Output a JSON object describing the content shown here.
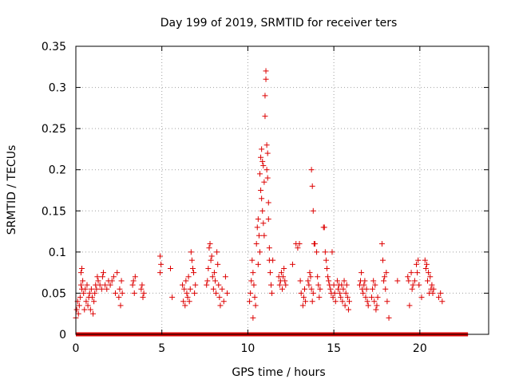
{
  "chart_data": {
    "type": "scatter",
    "title": "Day 199 of 2019, SRMTID for receiver ters",
    "xlabel": "GPS time / hours",
    "ylabel": "SRMTID / TECUs",
    "xlim": [
      0,
      24
    ],
    "ylim": [
      0,
      0.35
    ],
    "xticks": [
      0,
      5,
      10,
      15,
      20
    ],
    "xtick_labels": [
      "0",
      "5",
      "10",
      "15",
      "20"
    ],
    "yticks": [
      0,
      0.05,
      0.1,
      0.15,
      0.2,
      0.25,
      0.3,
      0.35
    ],
    "ytick_labels": [
      "0",
      "0.05",
      "0.1",
      "0.15",
      "0.2",
      "0.25",
      "0.3",
      "0.35"
    ],
    "grid": true,
    "marker": "plus",
    "color": "#dd0000",
    "zero_line": {
      "x_start": 0.0,
      "x_end": 22.8,
      "y": 0.0
    },
    "series": [
      {
        "name": "SRMTID",
        "points": [
          [
            0.0,
            0.02
          ],
          [
            0.05,
            0.03
          ],
          [
            0.1,
            0.04
          ],
          [
            0.15,
            0.025
          ],
          [
            0.2,
            0.035
          ],
          [
            0.25,
            0.045
          ],
          [
            0.3,
            0.06
          ],
          [
            0.3,
            0.075
          ],
          [
            0.35,
            0.08
          ],
          [
            0.35,
            0.055
          ],
          [
            0.4,
            0.065
          ],
          [
            0.45,
            0.05
          ],
          [
            0.5,
            0.03
          ],
          [
            0.55,
            0.055
          ],
          [
            0.6,
            0.04
          ],
          [
            0.65,
            0.06
          ],
          [
            0.7,
            0.035
          ],
          [
            0.75,
            0.045
          ],
          [
            0.8,
            0.05
          ],
          [
            0.85,
            0.03
          ],
          [
            0.9,
            0.055
          ],
          [
            0.95,
            0.045
          ],
          [
            1.0,
            0.025
          ],
          [
            1.05,
            0.04
          ],
          [
            1.1,
            0.05
          ],
          [
            1.15,
            0.06
          ],
          [
            1.2,
            0.055
          ],
          [
            1.25,
            0.07
          ],
          [
            1.3,
            0.065
          ],
          [
            1.4,
            0.06
          ],
          [
            1.5,
            0.055
          ],
          [
            1.55,
            0.07
          ],
          [
            1.6,
            0.075
          ],
          [
            1.7,
            0.06
          ],
          [
            1.8,
            0.055
          ],
          [
            1.9,
            0.065
          ],
          [
            2.0,
            0.06
          ],
          [
            2.1,
            0.065
          ],
          [
            2.2,
            0.07
          ],
          [
            2.3,
            0.05
          ],
          [
            2.4,
            0.075
          ],
          [
            2.5,
            0.045
          ],
          [
            2.55,
            0.055
          ],
          [
            2.6,
            0.035
          ],
          [
            2.65,
            0.065
          ],
          [
            2.7,
            0.05
          ],
          [
            3.3,
            0.06
          ],
          [
            3.35,
            0.065
          ],
          [
            3.4,
            0.05
          ],
          [
            3.45,
            0.07
          ],
          [
            3.8,
            0.055
          ],
          [
            3.85,
            0.06
          ],
          [
            3.9,
            0.045
          ],
          [
            3.95,
            0.05
          ],
          [
            4.9,
            0.095
          ],
          [
            4.9,
            0.075
          ],
          [
            4.95,
            0.085
          ],
          [
            5.5,
            0.08
          ],
          [
            5.6,
            0.045
          ],
          [
            6.2,
            0.06
          ],
          [
            6.25,
            0.04
          ],
          [
            6.3,
            0.055
          ],
          [
            6.35,
            0.035
          ],
          [
            6.4,
            0.065
          ],
          [
            6.45,
            0.05
          ],
          [
            6.5,
            0.045
          ],
          [
            6.55,
            0.07
          ],
          [
            6.6,
            0.04
          ],
          [
            6.65,
            0.055
          ],
          [
            6.7,
            0.1
          ],
          [
            6.75,
            0.09
          ],
          [
            6.8,
            0.08
          ],
          [
            6.85,
            0.075
          ],
          [
            6.9,
            0.05
          ],
          [
            6.95,
            0.06
          ],
          [
            7.6,
            0.06
          ],
          [
            7.65,
            0.065
          ],
          [
            7.7,
            0.08
          ],
          [
            7.75,
            0.105
          ],
          [
            7.8,
            0.11
          ],
          [
            7.85,
            0.09
          ],
          [
            7.9,
            0.095
          ],
          [
            7.95,
            0.07
          ],
          [
            8.0,
            0.055
          ],
          [
            8.05,
            0.075
          ],
          [
            8.1,
            0.065
          ],
          [
            8.15,
            0.05
          ],
          [
            8.2,
            0.1
          ],
          [
            8.25,
            0.085
          ],
          [
            8.3,
            0.06
          ],
          [
            8.35,
            0.045
          ],
          [
            8.4,
            0.035
          ],
          [
            8.5,
            0.055
          ],
          [
            8.6,
            0.04
          ],
          [
            8.7,
            0.07
          ],
          [
            8.8,
            0.05
          ],
          [
            10.1,
            0.04
          ],
          [
            10.15,
            0.05
          ],
          [
            10.2,
            0.065
          ],
          [
            10.25,
            0.09
          ],
          [
            10.3,
            0.075
          ],
          [
            10.35,
            0.06
          ],
          [
            10.4,
            0.045
          ],
          [
            10.45,
            0.035
          ],
          [
            10.5,
            0.11
          ],
          [
            10.55,
            0.13
          ],
          [
            10.6,
            0.14
          ],
          [
            10.65,
            0.12
          ],
          [
            10.7,
            0.1
          ],
          [
            10.7,
            0.195
          ],
          [
            10.75,
            0.175
          ],
          [
            10.75,
            0.215
          ],
          [
            10.8,
            0.225
          ],
          [
            10.8,
            0.165
          ],
          [
            10.85,
            0.21
          ],
          [
            10.85,
            0.15
          ],
          [
            10.9,
            0.205
          ],
          [
            10.9,
            0.135
          ],
          [
            10.95,
            0.185
          ],
          [
            10.95,
            0.12
          ],
          [
            11.0,
            0.265
          ],
          [
            11.0,
            0.29
          ],
          [
            11.05,
            0.32
          ],
          [
            11.05,
            0.31
          ],
          [
            11.1,
            0.2
          ],
          [
            11.1,
            0.23
          ],
          [
            11.15,
            0.22
          ],
          [
            11.15,
            0.19
          ],
          [
            11.2,
            0.16
          ],
          [
            11.2,
            0.14
          ],
          [
            11.25,
            0.105
          ],
          [
            11.25,
            0.09
          ],
          [
            11.3,
            0.075
          ],
          [
            11.35,
            0.06
          ],
          [
            11.4,
            0.05
          ],
          [
            11.45,
            0.09
          ],
          [
            10.3,
            0.02
          ],
          [
            10.6,
            0.085
          ],
          [
            11.8,
            0.07
          ],
          [
            11.85,
            0.06
          ],
          [
            11.9,
            0.065
          ],
          [
            11.95,
            0.075
          ],
          [
            12.0,
            0.055
          ],
          [
            12.05,
            0.07
          ],
          [
            12.1,
            0.08
          ],
          [
            12.15,
            0.065
          ],
          [
            12.2,
            0.06
          ],
          [
            12.6,
            0.085
          ],
          [
            12.8,
            0.11
          ],
          [
            12.9,
            0.105
          ],
          [
            13.0,
            0.11
          ],
          [
            13.05,
            0.065
          ],
          [
            13.1,
            0.05
          ],
          [
            13.2,
            0.035
          ],
          [
            13.25,
            0.045
          ],
          [
            13.3,
            0.055
          ],
          [
            13.35,
            0.04
          ],
          [
            13.5,
            0.065
          ],
          [
            13.55,
            0.06
          ],
          [
            13.6,
            0.075
          ],
          [
            13.65,
            0.07
          ],
          [
            13.7,
            0.055
          ],
          [
            13.75,
            0.04
          ],
          [
            13.8,
            0.05
          ],
          [
            13.7,
            0.2
          ],
          [
            13.75,
            0.18
          ],
          [
            13.8,
            0.15
          ],
          [
            13.85,
            0.11
          ],
          [
            13.9,
            0.11
          ],
          [
            14.0,
            0.1
          ],
          [
            14.05,
            0.07
          ],
          [
            14.1,
            0.06
          ],
          [
            14.15,
            0.045
          ],
          [
            14.2,
            0.055
          ],
          [
            14.4,
            0.13
          ],
          [
            14.45,
            0.13
          ],
          [
            14.5,
            0.1
          ],
          [
            14.55,
            0.09
          ],
          [
            14.6,
            0.08
          ],
          [
            14.65,
            0.07
          ],
          [
            14.7,
            0.065
          ],
          [
            14.75,
            0.06
          ],
          [
            14.8,
            0.055
          ],
          [
            14.85,
            0.05
          ],
          [
            14.9,
            0.1
          ],
          [
            14.95,
            0.045
          ],
          [
            15.0,
            0.06
          ],
          [
            15.05,
            0.05
          ],
          [
            15.1,
            0.04
          ],
          [
            15.2,
            0.065
          ],
          [
            15.25,
            0.055
          ],
          [
            15.3,
            0.06
          ],
          [
            15.35,
            0.05
          ],
          [
            15.4,
            0.045
          ],
          [
            15.45,
            0.06
          ],
          [
            15.5,
            0.04
          ],
          [
            15.55,
            0.055
          ],
          [
            15.6,
            0.065
          ],
          [
            15.65,
            0.035
          ],
          [
            15.7,
            0.05
          ],
          [
            15.75,
            0.06
          ],
          [
            15.8,
            0.045
          ],
          [
            15.85,
            0.03
          ],
          [
            15.9,
            0.04
          ],
          [
            16.5,
            0.06
          ],
          [
            16.55,
            0.065
          ],
          [
            16.6,
            0.075
          ],
          [
            16.65,
            0.055
          ],
          [
            16.7,
            0.05
          ],
          [
            16.75,
            0.06
          ],
          [
            16.8,
            0.065
          ],
          [
            16.85,
            0.045
          ],
          [
            16.9,
            0.055
          ],
          [
            16.95,
            0.04
          ],
          [
            17.0,
            0.035
          ],
          [
            17.2,
            0.045
          ],
          [
            17.25,
            0.055
          ],
          [
            17.3,
            0.065
          ],
          [
            17.35,
            0.04
          ],
          [
            17.4,
            0.06
          ],
          [
            17.45,
            0.03
          ],
          [
            17.5,
            0.035
          ],
          [
            17.55,
            0.045
          ],
          [
            17.8,
            0.11
          ],
          [
            17.85,
            0.09
          ],
          [
            17.9,
            0.065
          ],
          [
            17.95,
            0.07
          ],
          [
            18.0,
            0.055
          ],
          [
            18.05,
            0.075
          ],
          [
            18.1,
            0.04
          ],
          [
            18.2,
            0.02
          ],
          [
            18.7,
            0.065
          ],
          [
            19.3,
            0.07
          ],
          [
            19.35,
            0.065
          ],
          [
            19.4,
            0.035
          ],
          [
            19.5,
            0.075
          ],
          [
            19.55,
            0.055
          ],
          [
            19.6,
            0.06
          ],
          [
            19.7,
            0.065
          ],
          [
            19.8,
            0.085
          ],
          [
            19.85,
            0.075
          ],
          [
            19.9,
            0.09
          ],
          [
            19.95,
            0.06
          ],
          [
            20.1,
            0.045
          ],
          [
            20.3,
            0.09
          ],
          [
            20.35,
            0.08
          ],
          [
            20.4,
            0.085
          ],
          [
            20.45,
            0.065
          ],
          [
            20.5,
            0.075
          ],
          [
            20.55,
            0.05
          ],
          [
            20.6,
            0.07
          ],
          [
            20.65,
            0.055
          ],
          [
            20.7,
            0.06
          ],
          [
            20.75,
            0.05
          ],
          [
            20.8,
            0.055
          ],
          [
            21.1,
            0.045
          ],
          [
            21.2,
            0.05
          ],
          [
            21.3,
            0.04
          ]
        ]
      }
    ]
  }
}
